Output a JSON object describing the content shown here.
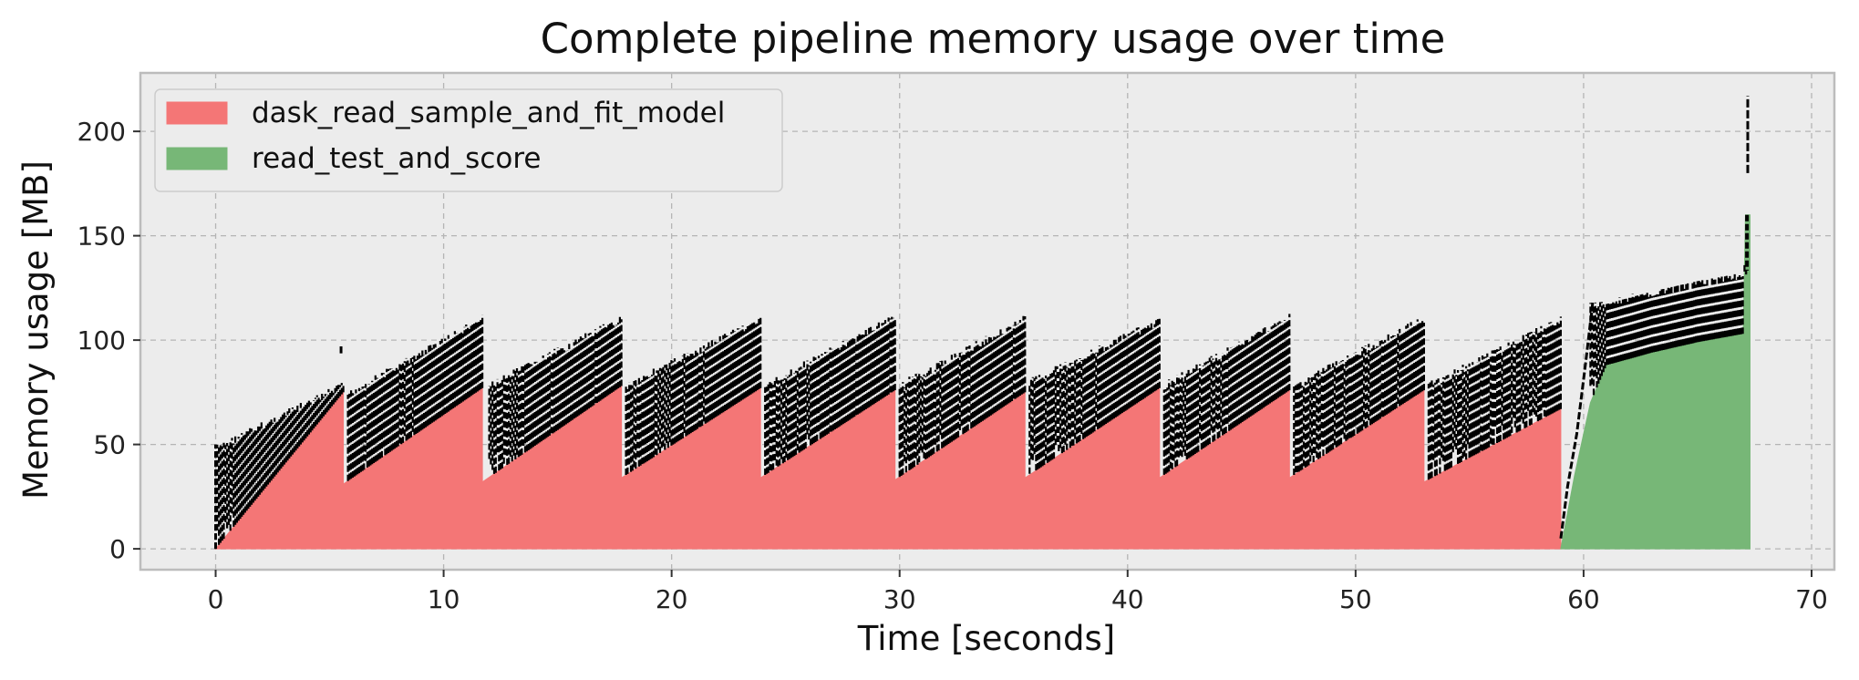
{
  "chart_data": {
    "type": "area",
    "title": "Complete pipeline memory usage over time",
    "xlabel": "Time [seconds]",
    "ylabel": "Memory usage [MB]",
    "xlim": [
      -3.3,
      71
    ],
    "ylim": [
      -10,
      228
    ],
    "xticks": [
      0,
      10,
      20,
      30,
      40,
      50,
      60,
      70
    ],
    "yticks": [
      0,
      50,
      100,
      150,
      200
    ],
    "grid": true,
    "legend_position": "top-left",
    "colors": {
      "background": "#ececec",
      "frame": "#bcbcbc",
      "dask_read_sample_and_fit_model": "#f47676",
      "read_test_and_score": "#77b777",
      "peaks": "#000000"
    },
    "series": [
      {
        "name": "dask_read_sample_and_fit_model",
        "color": "#f47676",
        "x": [
          0,
          5.6,
          5.6,
          11.7,
          11.7,
          17.8,
          17.8,
          23.9,
          23.9,
          29.8,
          29.8,
          35.5,
          35.5,
          41.4,
          41.4,
          47.1,
          47.1,
          53.0,
          53.0,
          59.0
        ],
        "y": [
          0,
          75,
          31,
          77,
          32,
          78,
          34,
          77,
          34,
          76,
          33,
          75,
          34,
          77,
          34,
          76,
          34,
          76,
          32,
          67
        ]
      },
      {
        "name": "read_test_and_score",
        "color": "#77b777",
        "x": [
          59.0,
          59.6,
          60.3,
          61.0,
          63.0,
          65.0,
          67.0,
          67.1,
          67.3
        ],
        "y": [
          0,
          35,
          70,
          88,
          94,
          99,
          103,
          160,
          160
        ]
      },
      {
        "name": "peak_memory",
        "style": "dashed-black",
        "segments": [
          {
            "x0": 0,
            "x1": 5.6,
            "y0": 50,
            "y1": 80,
            "spike_x": 5.5,
            "spike_y": 97
          },
          {
            "x0": 5.8,
            "x1": 11.7,
            "y0": 76,
            "y1": 112
          },
          {
            "x0": 12.0,
            "x1": 17.8,
            "y0": 80,
            "y1": 112
          },
          {
            "x0": 18.0,
            "x1": 23.9,
            "y0": 80,
            "y1": 112
          },
          {
            "x0": 24.1,
            "x1": 29.8,
            "y0": 80,
            "y1": 113
          },
          {
            "x0": 30.0,
            "x1": 35.5,
            "y0": 80,
            "y1": 112
          },
          {
            "x0": 35.7,
            "x1": 41.4,
            "y0": 82,
            "y1": 111
          },
          {
            "x0": 41.6,
            "x1": 47.1,
            "y0": 80,
            "y1": 113
          },
          {
            "x0": 47.3,
            "x1": 53.0,
            "y0": 80,
            "y1": 112
          },
          {
            "x0": 53.2,
            "x1": 59.0,
            "y0": 80,
            "y1": 112
          },
          {
            "x0": 60.3,
            "x1": 67.2,
            "y0": 118,
            "y1": 134,
            "spike_x": 67.2,
            "spike_y": 217
          }
        ]
      }
    ]
  }
}
